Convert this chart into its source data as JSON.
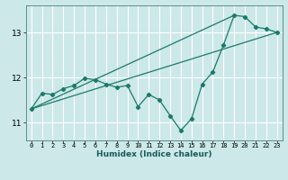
{
  "xlabel": "Humidex (Indice chaleur)",
  "ylabel": "",
  "bg_color": "#cce8e8",
  "grid_color": "#ffffff",
  "line_color": "#1a7a6a",
  "xlim": [
    -0.5,
    23.5
  ],
  "ylim": [
    10.6,
    13.6
  ],
  "yticks": [
    11,
    12,
    13
  ],
  "xticks": [
    0,
    1,
    2,
    3,
    4,
    5,
    6,
    7,
    8,
    9,
    10,
    11,
    12,
    13,
    14,
    15,
    16,
    17,
    18,
    19,
    20,
    21,
    22,
    23
  ],
  "main_series_x": [
    0,
    1,
    2,
    3,
    4,
    5,
    6,
    7,
    8,
    9,
    10,
    11,
    12,
    13,
    14,
    15,
    16,
    17,
    18,
    19,
    20,
    21,
    22,
    23
  ],
  "main_series_y": [
    11.3,
    11.65,
    11.62,
    11.75,
    11.82,
    11.98,
    11.95,
    11.85,
    11.78,
    11.82,
    11.35,
    11.62,
    11.5,
    11.15,
    10.82,
    11.08,
    11.85,
    12.12,
    12.72,
    13.38,
    13.35,
    13.12,
    13.08,
    13.0
  ],
  "line1_x": [
    0,
    23
  ],
  "line1_y": [
    11.3,
    13.0
  ],
  "line2_x": [
    0,
    19
  ],
  "line2_y": [
    11.3,
    13.38
  ],
  "xlabel_fontsize": 6.5,
  "xlabel_color": "#1a5a5a",
  "tick_fontsize": 5.0,
  "ytick_fontsize": 6.5
}
